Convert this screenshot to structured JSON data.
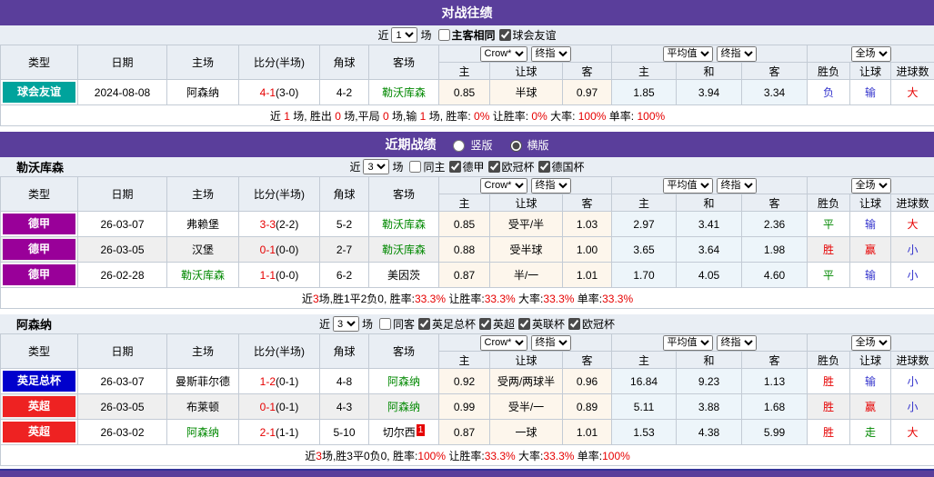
{
  "colors": {
    "purple": "#5A3E9B",
    "friendly_badge": "#00A39C",
    "bundesliga_badge": "#990099",
    "fa_cup_badge": "#0000CC",
    "epl_badge": "#EE2222",
    "red": "#E60000",
    "blue": "#3333CC",
    "green": "#008800",
    "odds_bg": "#FDF6EC",
    "avg_bg": "#EDF5FA"
  },
  "common": {
    "near_label": "近",
    "matches_label": "场",
    "main_headers": [
      "类型",
      "日期",
      "主场",
      "比分(半场)",
      "角球",
      "客场"
    ],
    "sub_headers": [
      "主",
      "让球",
      "客",
      "主",
      "和",
      "客",
      "胜负",
      "让球",
      "进球数"
    ],
    "selects": {
      "bookmaker": "Crow*",
      "final_index_1": "终指",
      "average": "平均值",
      "final_index_2": "终指",
      "full_match": "全场"
    }
  },
  "head_to_head": {
    "title": "对战往绩",
    "near_count": "1",
    "checkboxes": [
      {
        "label": "主客相同",
        "checked": false,
        "bold": true
      },
      {
        "label": "球会友谊",
        "checked": true,
        "bold": false
      }
    ],
    "rows": [
      {
        "league": "球会友谊",
        "league_color": "#00A39C",
        "date": "2024-08-08",
        "home": "阿森纳",
        "home_green": false,
        "score_main": "4-1",
        "score_half": "(3-0)",
        "corner": "4-2",
        "away": "勒沃库森",
        "away_green": true,
        "away_sup": "",
        "odds": [
          "0.85",
          "半球",
          "0.97"
        ],
        "avg": [
          "1.85",
          "3.94",
          "3.34"
        ],
        "results": [
          {
            "text": "负",
            "color": "blue"
          },
          {
            "text": "输",
            "color": "blue"
          },
          {
            "text": "大",
            "color": "red"
          }
        ]
      }
    ],
    "summary": [
      {
        "text": "近 ",
        "red": false
      },
      {
        "text": "1",
        "red": true
      },
      {
        "text": " 场, 胜出 ",
        "red": false
      },
      {
        "text": "0",
        "red": true
      },
      {
        "text": " 场,平局 ",
        "red": false
      },
      {
        "text": "0",
        "red": true
      },
      {
        "text": " 场,输 ",
        "red": false
      },
      {
        "text": "1",
        "red": true
      },
      {
        "text": " 场, 胜率: ",
        "red": false
      },
      {
        "text": "0%",
        "red": true
      },
      {
        "text": " 让胜率: ",
        "red": false
      },
      {
        "text": "0%",
        "red": true
      },
      {
        "text": " 大率: ",
        "red": false
      },
      {
        "text": "100%",
        "red": true
      },
      {
        "text": " 单率: ",
        "red": false
      },
      {
        "text": "100%",
        "red": true
      }
    ]
  },
  "recent": {
    "title": "近期战绩",
    "radios": [
      {
        "label": "竖版",
        "checked": false
      },
      {
        "label": "横版",
        "checked": true
      }
    ]
  },
  "leverkusen": {
    "team": "勒沃库森",
    "near_count": "3",
    "checkboxes": [
      {
        "label": "同主",
        "checked": false,
        "bold": false
      },
      {
        "label": "德甲",
        "checked": true,
        "bold": false
      },
      {
        "label": "欧冠杯",
        "checked": true,
        "bold": false
      },
      {
        "label": "德国杯",
        "checked": true,
        "bold": false
      }
    ],
    "rows": [
      {
        "league": "德甲",
        "league_color": "#990099",
        "date": "26-03-07",
        "home": "弗赖堡",
        "home_green": false,
        "score_main": "3-3",
        "score_half": "(2-2)",
        "corner": "5-2",
        "away": "勒沃库森",
        "away_green": true,
        "away_sup": "",
        "odds": [
          "0.85",
          "受平/半",
          "1.03"
        ],
        "avg": [
          "2.97",
          "3.41",
          "2.36"
        ],
        "results": [
          {
            "text": "平",
            "color": "green"
          },
          {
            "text": "输",
            "color": "blue"
          },
          {
            "text": "大",
            "color": "red"
          }
        ]
      },
      {
        "league": "德甲",
        "league_color": "#990099",
        "date": "26-03-05",
        "home": "汉堡",
        "home_green": false,
        "score_main": "0-1",
        "score_half": "(0-0)",
        "corner": "2-7",
        "away": "勒沃库森",
        "away_green": true,
        "away_sup": "",
        "odds": [
          "0.88",
          "受半球",
          "1.00"
        ],
        "avg": [
          "3.65",
          "3.64",
          "1.98"
        ],
        "results": [
          {
            "text": "胜",
            "color": "red"
          },
          {
            "text": "赢",
            "color": "red"
          },
          {
            "text": "小",
            "color": "blue"
          }
        ]
      },
      {
        "league": "德甲",
        "league_color": "#990099",
        "date": "26-02-28",
        "home": "勒沃库森",
        "home_green": true,
        "score_main": "1-1",
        "score_half": "(0-0)",
        "corner": "6-2",
        "away": "美因茨",
        "away_green": false,
        "away_sup": "",
        "odds": [
          "0.87",
          "半/一",
          "1.01"
        ],
        "avg": [
          "1.70",
          "4.05",
          "4.60"
        ],
        "results": [
          {
            "text": "平",
            "color": "green"
          },
          {
            "text": "输",
            "color": "blue"
          },
          {
            "text": "小",
            "color": "blue"
          }
        ]
      }
    ],
    "summary": [
      {
        "text": "近",
        "red": false
      },
      {
        "text": "3",
        "red": true
      },
      {
        "text": "场,胜1平2负0, 胜率:",
        "red": false
      },
      {
        "text": "33.3%",
        "red": true
      },
      {
        "text": " 让胜率:",
        "red": false
      },
      {
        "text": "33.3%",
        "red": true
      },
      {
        "text": " 大率:",
        "red": false
      },
      {
        "text": "33.3%",
        "red": true
      },
      {
        "text": " 单率:",
        "red": false
      },
      {
        "text": "33.3%",
        "red": true
      }
    ]
  },
  "arsenal": {
    "team": "阿森纳",
    "near_count": "3",
    "checkboxes": [
      {
        "label": "同客",
        "checked": false,
        "bold": false
      },
      {
        "label": "英足总杯",
        "checked": true,
        "bold": false
      },
      {
        "label": "英超",
        "checked": true,
        "bold": false
      },
      {
        "label": "英联杯",
        "checked": true,
        "bold": false
      },
      {
        "label": "欧冠杯",
        "checked": true,
        "bold": false
      }
    ],
    "rows": [
      {
        "league": "英足总杯",
        "league_color": "#0000CC",
        "date": "26-03-07",
        "home": "曼斯菲尔德",
        "home_green": false,
        "score_main": "1-2",
        "score_half": "(0-1)",
        "corner": "4-8",
        "away": "阿森纳",
        "away_green": true,
        "away_sup": "",
        "odds": [
          "0.92",
          "受两/两球半",
          "0.96"
        ],
        "avg": [
          "16.84",
          "9.23",
          "1.13"
        ],
        "results": [
          {
            "text": "胜",
            "color": "red"
          },
          {
            "text": "输",
            "color": "blue"
          },
          {
            "text": "小",
            "color": "blue"
          }
        ]
      },
      {
        "league": "英超",
        "league_color": "#EE2222",
        "date": "26-03-05",
        "home": "布莱顿",
        "home_green": false,
        "score_main": "0-1",
        "score_half": "(0-1)",
        "corner": "4-3",
        "away": "阿森纳",
        "away_green": true,
        "away_sup": "",
        "odds": [
          "0.99",
          "受半/一",
          "0.89"
        ],
        "avg": [
          "5.11",
          "3.88",
          "1.68"
        ],
        "results": [
          {
            "text": "胜",
            "color": "red"
          },
          {
            "text": "赢",
            "color": "red"
          },
          {
            "text": "小",
            "color": "blue"
          }
        ]
      },
      {
        "league": "英超",
        "league_color": "#EE2222",
        "date": "26-03-02",
        "home": "阿森纳",
        "home_green": true,
        "score_main": "2-1",
        "score_half": "(1-1)",
        "corner": "5-10",
        "away": "切尔西",
        "away_green": false,
        "away_sup": "1",
        "odds": [
          "0.87",
          "一球",
          "1.01"
        ],
        "avg": [
          "1.53",
          "4.38",
          "5.99"
        ],
        "results": [
          {
            "text": "胜",
            "color": "red"
          },
          {
            "text": "走",
            "color": "green"
          },
          {
            "text": "大",
            "color": "red"
          }
        ]
      }
    ],
    "summary": [
      {
        "text": "近",
        "red": false
      },
      {
        "text": "3",
        "red": true
      },
      {
        "text": "场,胜3平0负0, 胜率:",
        "red": false
      },
      {
        "text": "100%",
        "red": true
      },
      {
        "text": " 让胜率:",
        "red": false
      },
      {
        "text": "33.3%",
        "red": true
      },
      {
        "text": " 大率:",
        "red": false
      },
      {
        "text": "33.3%",
        "red": true
      },
      {
        "text": " 单率:",
        "red": false
      },
      {
        "text": "100%",
        "red": true
      }
    ]
  }
}
